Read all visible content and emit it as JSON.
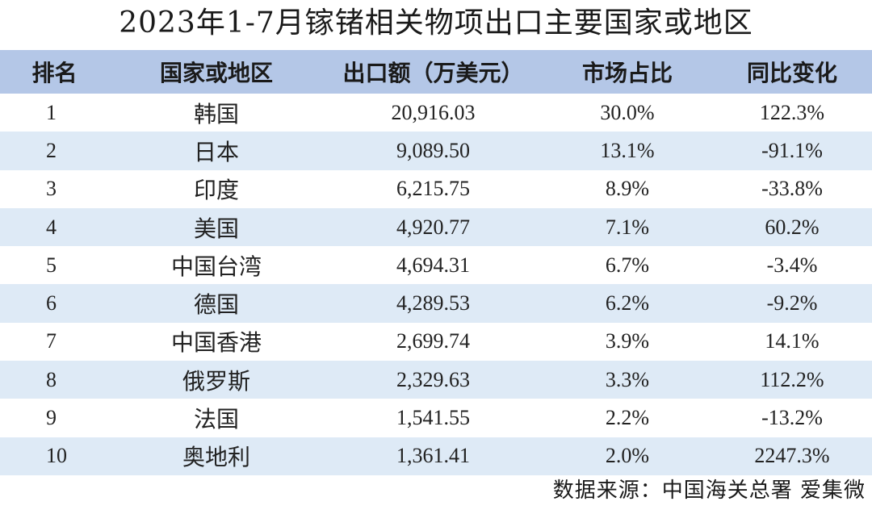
{
  "title": "2023年1-7月镓锗相关物项出口主要国家或地区",
  "table": {
    "headers": [
      "排名",
      "国家或地区",
      "出口额（万美元）",
      "市场占比",
      "同比变化"
    ],
    "rows": [
      {
        "rank": "1",
        "country": "韩国",
        "export": "20,916.03",
        "share": "30.0%",
        "yoy": "122.3%"
      },
      {
        "rank": "2",
        "country": "日本",
        "export": "9,089.50",
        "share": "13.1%",
        "yoy": "-91.1%"
      },
      {
        "rank": "3",
        "country": "印度",
        "export": "6,215.75",
        "share": "8.9%",
        "yoy": "-33.8%"
      },
      {
        "rank": "4",
        "country": "美国",
        "export": "4,920.77",
        "share": "7.1%",
        "yoy": "60.2%"
      },
      {
        "rank": "5",
        "country": "中国台湾",
        "export": "4,694.31",
        "share": "6.7%",
        "yoy": "-3.4%"
      },
      {
        "rank": "6",
        "country": "德国",
        "export": "4,289.53",
        "share": "6.2%",
        "yoy": "-9.2%"
      },
      {
        "rank": "7",
        "country": "中国香港",
        "export": "2,699.74",
        "share": "3.9%",
        "yoy": "14.1%"
      },
      {
        "rank": "8",
        "country": "俄罗斯",
        "export": "2,329.63",
        "share": "3.3%",
        "yoy": "112.2%"
      },
      {
        "rank": "9",
        "country": "法国",
        "export": "1,541.55",
        "share": "2.2%",
        "yoy": "-13.2%"
      },
      {
        "rank": "10",
        "country": "奥地利",
        "export": "1,361.41",
        "share": "2.0%",
        "yoy": "2247.3%"
      }
    ]
  },
  "source": "数据来源：中国海关总署 爱集微",
  "colors": {
    "header_bg": "#b4c7e7",
    "stripe_bg": "#deeaf6"
  }
}
